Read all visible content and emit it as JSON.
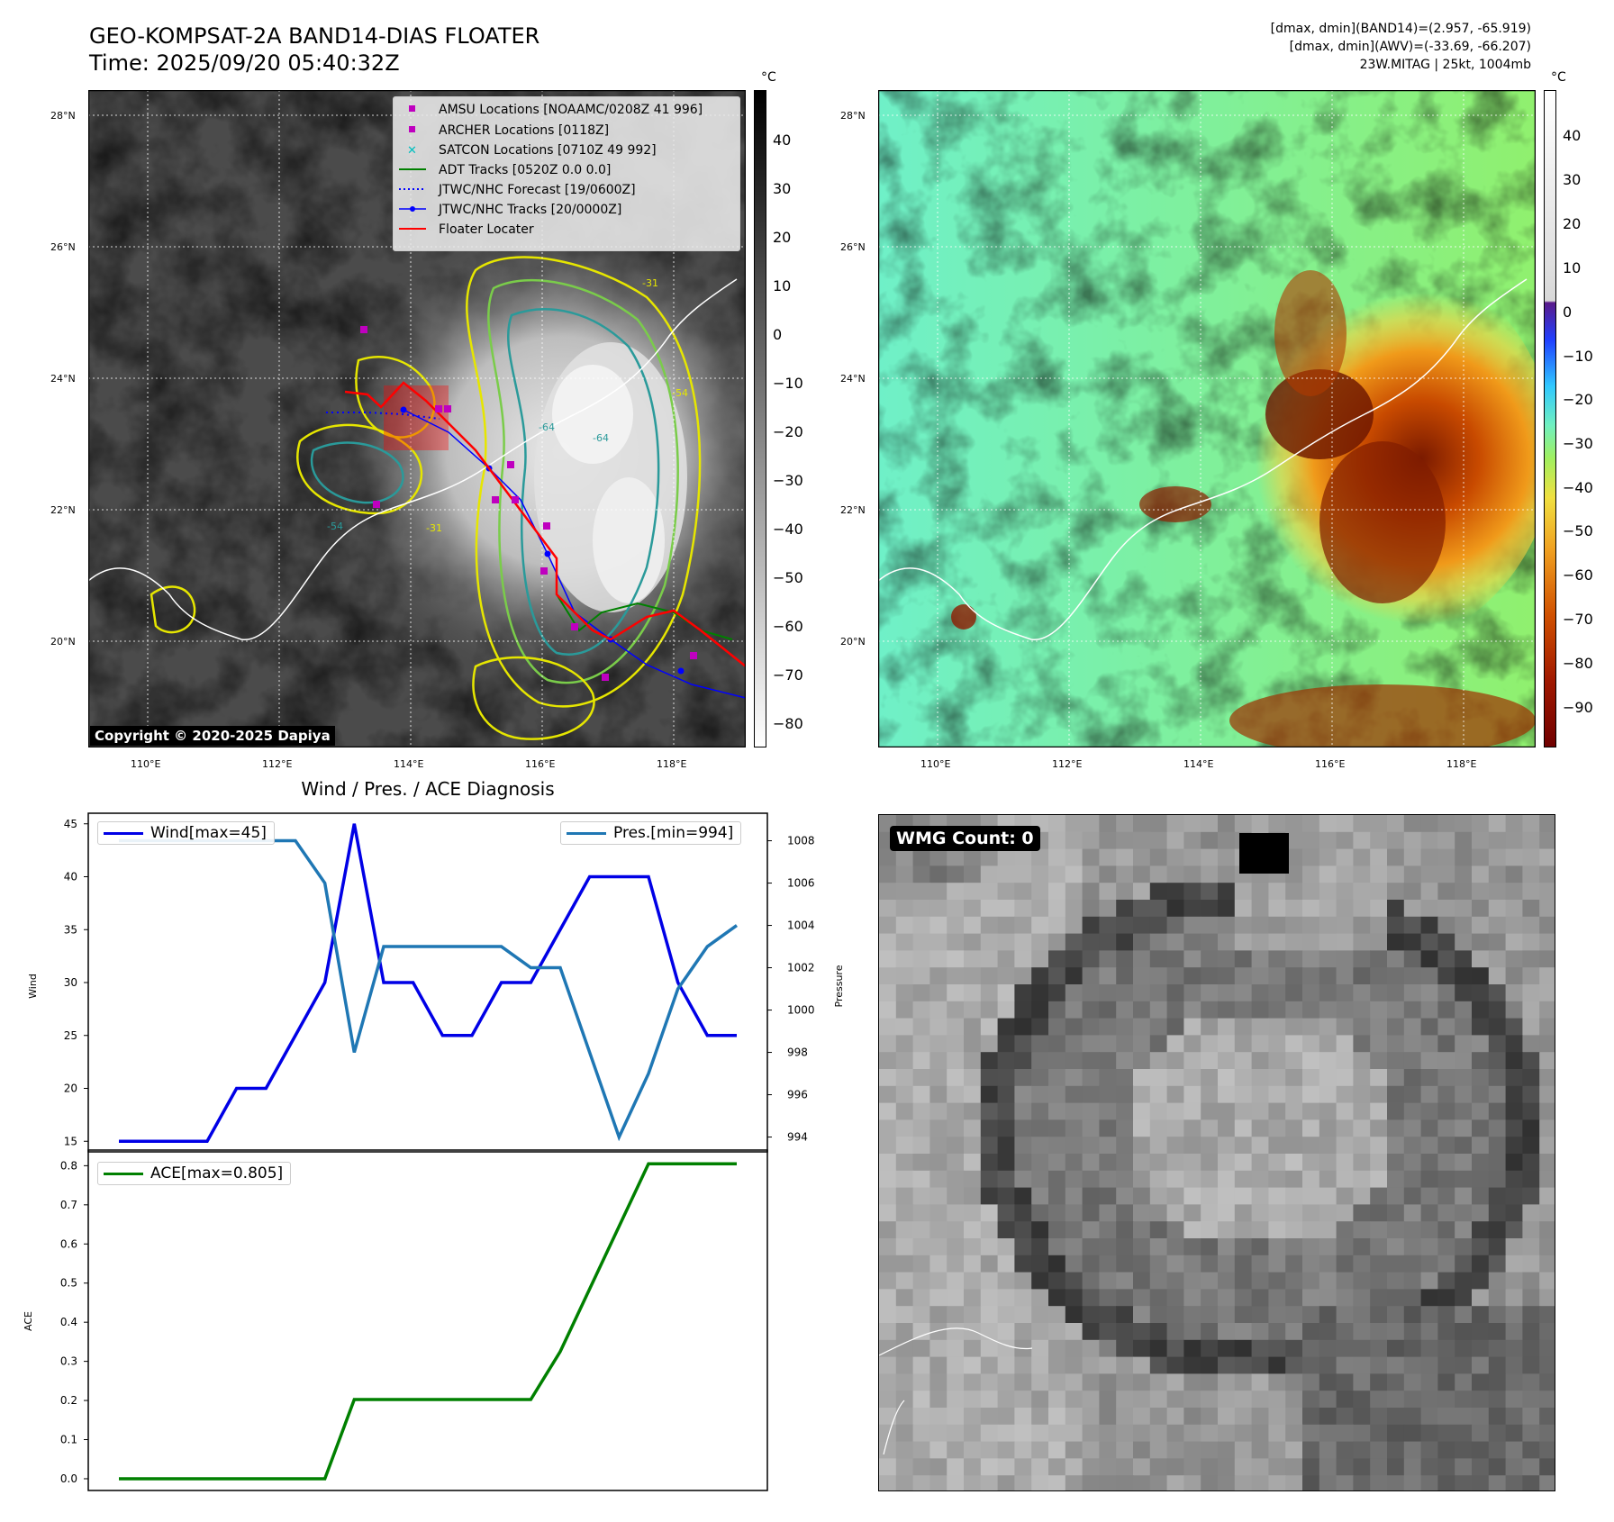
{
  "header": {
    "title": "GEO-KOMPSAT-2A BAND14-DIAS FLOATER",
    "time": "Time: 2025/09/20 05:40:32Z",
    "info_line1": "[dmax, dmin](BAND14)=(2.957, -65.919)",
    "info_line2": "[dmax, dmin](AWV)=(-33.69, -66.207)",
    "info_line3": "23W.MITAG | 25kt, 1004mb"
  },
  "maps": {
    "lat_ticks": [
      "28°N",
      "26°N",
      "24°N",
      "22°N",
      "20°N"
    ],
    "lon_ticks": [
      "110°E",
      "112°E",
      "114°E",
      "116°E",
      "118°E"
    ],
    "copyright": "Copyright © 2020-2025 Dapiya",
    "legend": [
      {
        "label": "AMSU Locations [NOAAMC/0208Z 41 996]",
        "symbol": "square",
        "color": "#bf00bf"
      },
      {
        "label": "ARCHER Locations [0118Z]",
        "symbol": "square",
        "color": "#bf00bf"
      },
      {
        "label": "SATCON Locations [0710Z 49 992]",
        "symbol": "x",
        "color": "#00bfbf"
      },
      {
        "label": "ADT Tracks [0520Z 0.0 0.0]",
        "symbol": "line",
        "color": "#008000"
      },
      {
        "label": "JTWC/NHC Forecast [19/0600Z]",
        "symbol": "dotted",
        "color": "#0000ff"
      },
      {
        "label": "JTWC/NHC Tracks [20/0000Z]",
        "symbol": "line-dot",
        "color": "#0000ff"
      },
      {
        "label": "Floater Locater",
        "symbol": "line",
        "color": "#ff0000"
      }
    ],
    "colorbar_left": {
      "unit": "°C",
      "ticks": [
        "40",
        "30",
        "20",
        "10",
        "0",
        "−10",
        "−20",
        "−30",
        "−40",
        "−50",
        "−60",
        "−70",
        "−80"
      ]
    },
    "colorbar_right": {
      "unit": "°C",
      "ticks": [
        "40",
        "30",
        "20",
        "10",
        "0",
        "−10",
        "−20",
        "−30",
        "−40",
        "−50",
        "−60",
        "−70",
        "−80",
        "−90"
      ]
    },
    "contour_labels": [
      "-54",
      "-64",
      "-31",
      "-54",
      "-31",
      "-64"
    ],
    "wmg_label": "WMG Count: 0"
  },
  "chart_data": [
    {
      "type": "line",
      "title": "Wind / Pres. / ACE Diagnosis",
      "ylabel": "Wind",
      "ylabel_right": "Pressure",
      "ylim": [
        14,
        46
      ],
      "ylim_right": [
        993.3,
        1009.3
      ],
      "yticks": [
        15,
        20,
        25,
        30,
        35,
        40,
        45
      ],
      "yticks_right": [
        994,
        996,
        998,
        1000,
        1002,
        1004,
        1006,
        1008
      ],
      "series": [
        {
          "name": "Wind[max=45]",
          "color": "#0000e6",
          "values": [
            15,
            15,
            15,
            15,
            20,
            20,
            25,
            30,
            45,
            30,
            30,
            25,
            25,
            30,
            30,
            35,
            40,
            40,
            40,
            30,
            25,
            25
          ]
        },
        {
          "name": "Pres.[min=994]",
          "color": "#1f77b4",
          "axis": "right",
          "values": [
            1008,
            1008,
            1008,
            1008,
            1008,
            1008,
            1008,
            1006,
            998,
            1003,
            1003,
            1003,
            1003,
            1003,
            1002,
            1002,
            998,
            994,
            997,
            1001,
            1003,
            1004
          ]
        }
      ]
    },
    {
      "type": "line",
      "ylabel": "ACE",
      "ylim": [
        -0.03,
        0.84
      ],
      "yticks": [
        0.0,
        0.1,
        0.2,
        0.3,
        0.4,
        0.5,
        0.6,
        0.7,
        0.8
      ],
      "series": [
        {
          "name": "ACE[max=0.805]",
          "color": "#008000",
          "values": [
            0,
            0,
            0,
            0,
            0,
            0,
            0,
            0,
            0.2025,
            0.2025,
            0.2025,
            0.2025,
            0.2025,
            0.2025,
            0.2025,
            0.325,
            0.485,
            0.645,
            0.805,
            0.805,
            0.805,
            0.805
          ]
        }
      ]
    }
  ]
}
